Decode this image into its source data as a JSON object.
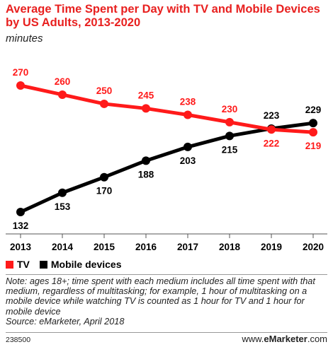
{
  "title": "Average Time Spent per Day with TV and Mobile Devices by US Adults, 2013-2020",
  "subtitle": "minutes",
  "chart_data": {
    "type": "line",
    "title": "Average Time Spent per Day with TV and Mobile Devices by US Adults, 2013-2020",
    "subtitle": "minutes",
    "categories": [
      "2013",
      "2014",
      "2015",
      "2016",
      "2017",
      "2018",
      "2019",
      "2020"
    ],
    "series": [
      {
        "name": "TV",
        "color": "#ff1a1a",
        "values": [
          270,
          260,
          250,
          245,
          238,
          230,
          222,
          219
        ]
      },
      {
        "name": "Mobile devices",
        "color": "#000000",
        "values": [
          132,
          153,
          170,
          188,
          203,
          215,
          223,
          229
        ]
      }
    ],
    "ylim": [
      120,
      280
    ],
    "grid": false,
    "legend_position": "bottom-left"
  },
  "legend": [
    {
      "label": "TV",
      "color": "#ff1a1a"
    },
    {
      "label": "Mobile devices",
      "color": "#000000"
    }
  ],
  "note": "Note: ages 18+; time spent with each medium includes all time spent with that medium, regardless of multitasking; for example, 1 hour of multitasking on a mobile device while watching TV is counted as 1 hour for TV and 1 hour for mobile device",
  "source": "Source: eMarketer, April 2018",
  "footer": {
    "chart_id": "238500",
    "brand_prefix": "www.",
    "brand_name": "eMarketer",
    "brand_suffix": ".com"
  }
}
